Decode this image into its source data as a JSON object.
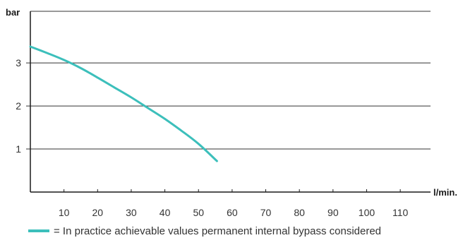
{
  "chart_data": {
    "type": "line",
    "ylabel": "bar",
    "xlabel": "l/min.",
    "x_ticks": [
      10,
      20,
      30,
      40,
      50,
      60,
      70,
      80,
      90,
      100,
      110
    ],
    "y_ticks": [
      1,
      2,
      3
    ],
    "xlim": [
      0,
      119
    ],
    "ylim": [
      0,
      4.2
    ],
    "grid": "horizontal",
    "series": [
      {
        "color": "#3cbfbb",
        "x": [
          0,
          5,
          10,
          15,
          20,
          25,
          30,
          35,
          40,
          45,
          50,
          55.5
        ],
        "y": [
          3.38,
          3.23,
          3.07,
          2.88,
          2.66,
          2.43,
          2.2,
          1.95,
          1.7,
          1.42,
          1.12,
          0.72
        ]
      }
    ],
    "legend": {
      "text": "= In practice achievable values permanent internal bypass considered",
      "placement": "bottom-left"
    }
  }
}
